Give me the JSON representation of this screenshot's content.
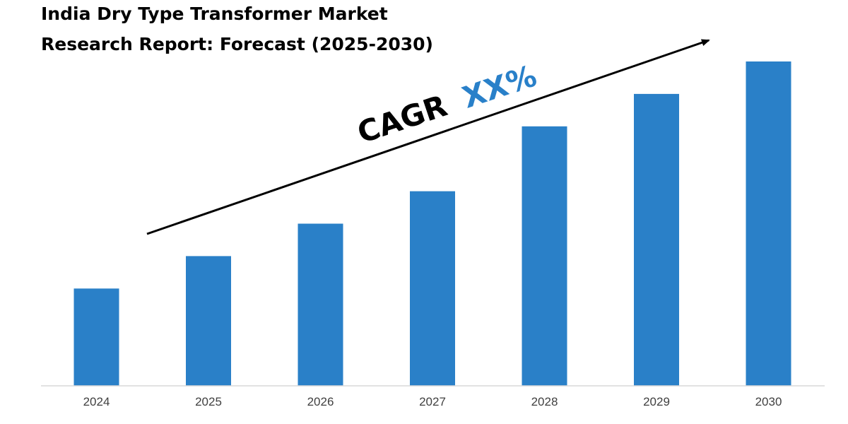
{
  "title_lines": [
    "India Dry Type Transformer Market",
    "Research Report: Forecast (2025-2030)"
  ],
  "annotation": {
    "prefix": "CAGR",
    "value": "XX%",
    "prefix_color": "#000000",
    "value_color": "#2980c9"
  },
  "colors": {
    "bar": "#2a80c8",
    "axis": "#d9d9d9",
    "arrow": "#000000"
  },
  "chart_data": {
    "type": "bar",
    "title": "India Dry Type Transformer Market Research Report: Forecast (2025-2030)",
    "categories": [
      "2024",
      "2025",
      "2026",
      "2027",
      "2028",
      "2029",
      "2030"
    ],
    "values": [
      30,
      40,
      50,
      60,
      80,
      90,
      100
    ],
    "ylim": [
      0,
      100
    ],
    "xlabel": "",
    "ylabel": "",
    "grid": false,
    "legend": "none",
    "value_axis_labels": false,
    "annotations": [
      "CAGR XX%"
    ]
  }
}
